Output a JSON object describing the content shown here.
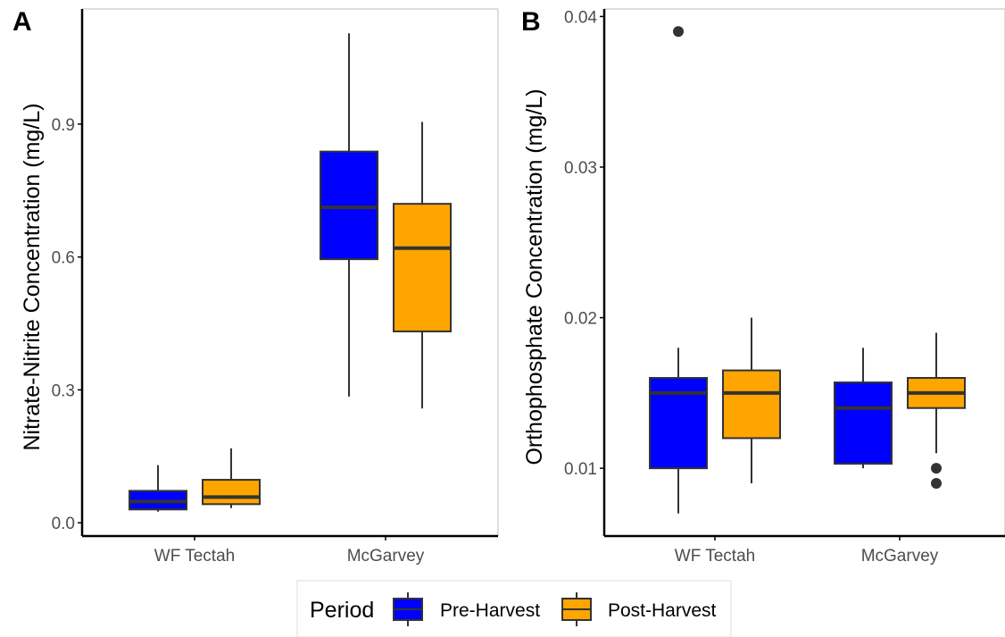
{
  "colors": {
    "pre": "#0000ff",
    "post": "#ffa500",
    "line": "#333333",
    "axis": "#000000",
    "frame": "#bdbdbd"
  },
  "legend": {
    "title": "Period",
    "items": [
      {
        "label": "Pre-Harvest",
        "color": "#0000ff"
      },
      {
        "label": "Post-Harvest",
        "color": "#ffa500"
      }
    ]
  },
  "chart_data": [
    {
      "type": "box",
      "panel_label": "A",
      "ylabel": "Nitrate-Nitrite Concentration (mg/L)",
      "ylim": [
        -0.03,
        1.16
      ],
      "yticks": [
        0.0,
        0.3,
        0.6,
        0.9
      ],
      "ytick_labels": [
        "0.0",
        "0.3",
        "0.6",
        "0.9"
      ],
      "categories": [
        "WF Tectah",
        "McGarvey"
      ],
      "series": [
        {
          "name": "Pre-Harvest",
          "boxes": [
            {
              "category": "WF Tectah",
              "whisker_low": 0.025,
              "q1": 0.03,
              "median": 0.048,
              "q3": 0.072,
              "whisker_high": 0.13,
              "outliers": []
            },
            {
              "category": "McGarvey",
              "whisker_low": 0.285,
              "q1": 0.595,
              "median": 0.712,
              "q3": 0.838,
              "whisker_high": 1.105,
              "outliers": []
            }
          ]
        },
        {
          "name": "Post-Harvest",
          "boxes": [
            {
              "category": "WF Tectah",
              "whisker_low": 0.033,
              "q1": 0.042,
              "median": 0.058,
              "q3": 0.097,
              "whisker_high": 0.168,
              "outliers": []
            },
            {
              "category": "McGarvey",
              "whisker_low": 0.258,
              "q1": 0.432,
              "median": 0.62,
              "q3": 0.72,
              "whisker_high": 0.905,
              "outliers": []
            }
          ]
        }
      ]
    },
    {
      "type": "box",
      "panel_label": "B",
      "ylabel": "Orthophosphate Concentration (mg/L)",
      "ylim": [
        0.0055,
        0.0405
      ],
      "yticks": [
        0.01,
        0.02,
        0.03,
        0.04
      ],
      "ytick_labels": [
        "0.01",
        "0.02",
        "0.03",
        "0.04"
      ],
      "categories": [
        "WF Tectah",
        "McGarvey"
      ],
      "series": [
        {
          "name": "Pre-Harvest",
          "boxes": [
            {
              "category": "WF Tectah",
              "whisker_low": 0.007,
              "q1": 0.01,
              "median": 0.015,
              "q3": 0.016,
              "whisker_high": 0.018,
              "outliers": [
                0.039
              ]
            },
            {
              "category": "McGarvey",
              "whisker_low": 0.01,
              "q1": 0.0103,
              "median": 0.014,
              "q3": 0.0157,
              "whisker_high": 0.018,
              "outliers": []
            }
          ]
        },
        {
          "name": "Post-Harvest",
          "boxes": [
            {
              "category": "WF Tectah",
              "whisker_low": 0.009,
              "q1": 0.012,
              "median": 0.015,
              "q3": 0.0165,
              "whisker_high": 0.02,
              "outliers": []
            },
            {
              "category": "McGarvey",
              "whisker_low": 0.011,
              "q1": 0.014,
              "median": 0.015,
              "q3": 0.016,
              "whisker_high": 0.019,
              "outliers": [
                0.01,
                0.009
              ]
            }
          ]
        }
      ]
    }
  ]
}
